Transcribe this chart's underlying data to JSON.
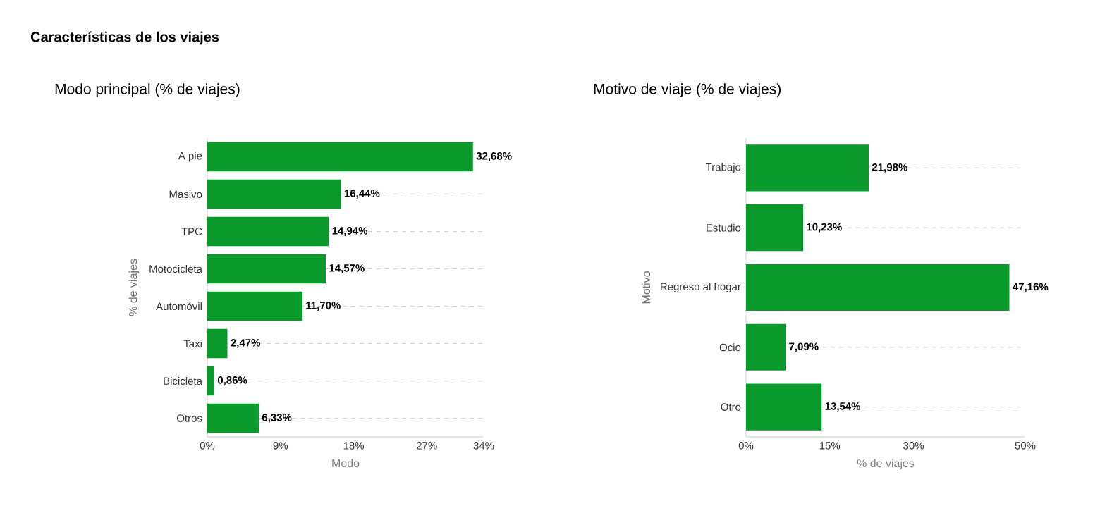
{
  "chart_data": [
    {
      "type": "bar",
      "orientation": "horizontal",
      "title": "Modo principal (% de viajes)",
      "xlabel": "Modo",
      "ylabel": "% de viajes",
      "annotations": [
        "Características de los viajes"
      ],
      "categories": [
        "A pie",
        "Masivo",
        "TPC",
        "Motocicleta",
        "Automóvil",
        "Taxi",
        "Bicicleta",
        "Otros"
      ],
      "values": [
        32.68,
        16.44,
        14.94,
        14.57,
        11.7,
        2.47,
        0.86,
        6.33
      ],
      "value_labels": [
        "32,68%",
        "16,44%",
        "14,94%",
        "14,57%",
        "11,70%",
        "2,47%",
        "0,86%",
        "6,33%"
      ],
      "color": "#0a9a2c",
      "xlim": [
        0,
        34
      ],
      "xticks": [
        {
          "value": 0,
          "label": "0%"
        },
        {
          "value": 9,
          "label": "9%"
        },
        {
          "value": 18,
          "label": "18%"
        },
        {
          "value": 27,
          "label": "27%"
        },
        {
          "value": 34,
          "label": "34%"
        }
      ],
      "grid": "y"
    },
    {
      "type": "bar",
      "orientation": "horizontal",
      "title": "Motivo de viaje (% de viajes)",
      "xlabel": "% de viajes",
      "ylabel": "Motivo",
      "categories": [
        "Trabajo",
        "Estudio",
        "Regreso al hogar",
        "Ocio",
        "Otro"
      ],
      "values": [
        21.98,
        10.23,
        47.16,
        7.09,
        13.54
      ],
      "value_labels": [
        "21,98%",
        "10,23%",
        "47,16%",
        "7,09%",
        "13,54%"
      ],
      "color": "#0a9a2c",
      "xlim": [
        0,
        50
      ],
      "xticks": [
        {
          "value": 0,
          "label": "0%"
        },
        {
          "value": 15,
          "label": "15%"
        },
        {
          "value": 30,
          "label": "30%"
        },
        {
          "value": 50,
          "label": "50%"
        }
      ],
      "grid": "y"
    }
  ]
}
